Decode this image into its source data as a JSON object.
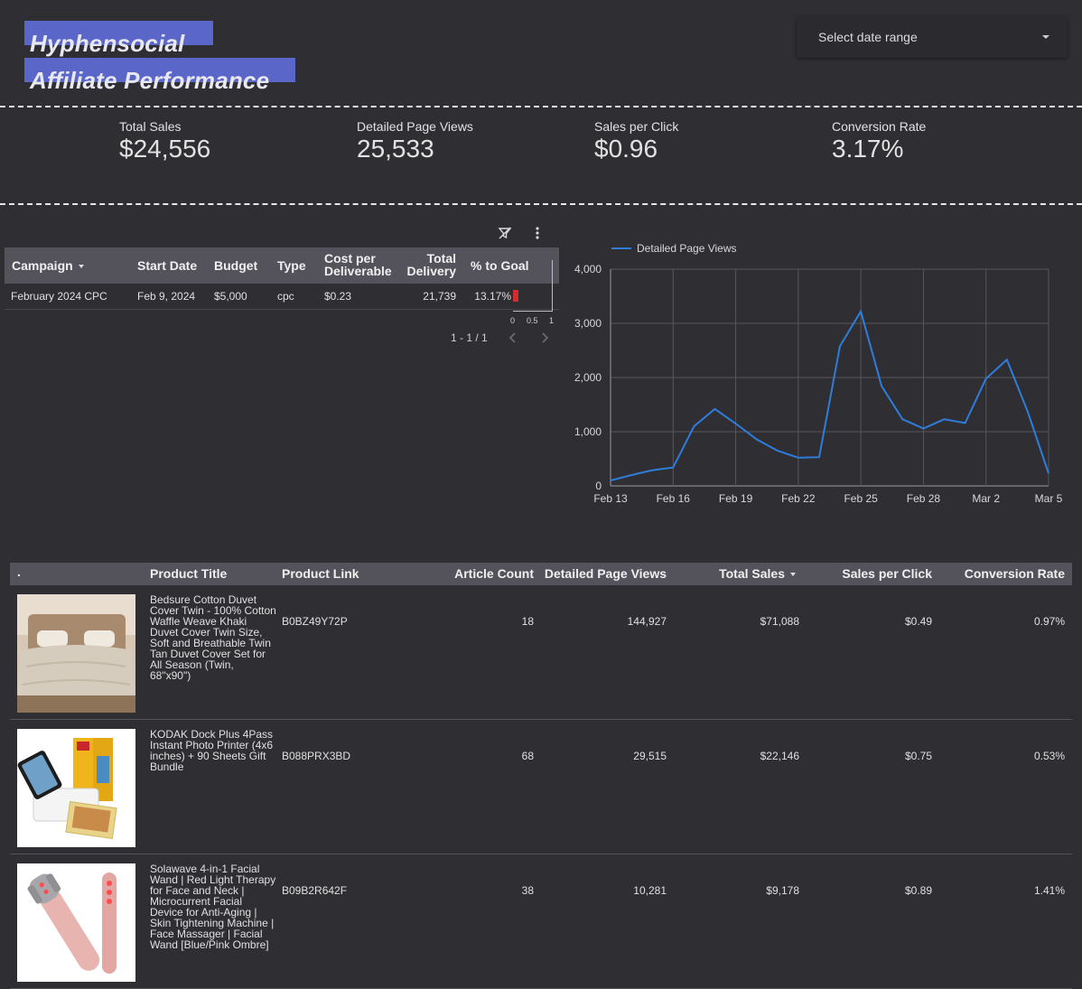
{
  "header": {
    "title_line1": "Hyphensocial",
    "title_line2": "Affiliate Performance",
    "date_range_placeholder": "Select date range"
  },
  "kpis": [
    {
      "label": "Total Sales",
      "value": "$24,556"
    },
    {
      "label": "Detailed Page Views",
      "value": "25,533"
    },
    {
      "label": "Sales per Click",
      "value": "$0.96"
    },
    {
      "label": "Conversion Rate",
      "value": "3.17%"
    }
  ],
  "campaign_table": {
    "columns": [
      "Campaign",
      "Start Date",
      "Budget",
      "Type",
      "Cost per Deliverable",
      "Total Delivery",
      "% to Goal"
    ],
    "col_cost_l1": "Cost per",
    "col_cost_l2": "Deliverable",
    "col_total_l1": "Total",
    "col_total_l2": "Delivery",
    "rows": [
      {
        "campaign": "February 2024 CPC",
        "start_date": "Feb 9, 2024",
        "budget": "$5,000",
        "type": "cpc",
        "cost": "$0.23",
        "delivery": "21,739",
        "pct": "13.17%",
        "pct_fraction": 0.1317
      }
    ],
    "goal_axis": [
      "0",
      "0.5",
      "1"
    ],
    "pager": "1 - 1 / 1"
  },
  "chart_data": {
    "type": "line",
    "legend": "Detailed Page Views",
    "legend_position": "top-left",
    "x": [
      "Feb 13",
      "Feb 14",
      "Feb 15",
      "Feb 16",
      "Feb 17",
      "Feb 18",
      "Feb 19",
      "Feb 20",
      "Feb 21",
      "Feb 22",
      "Feb 23",
      "Feb 24",
      "Feb 25",
      "Feb 26",
      "Feb 27",
      "Feb 28",
      "Feb 29",
      "Mar 1",
      "Mar 2",
      "Mar 3",
      "Mar 4",
      "Mar 5"
    ],
    "series": [
      {
        "name": "Detailed Page Views",
        "values": [
          100,
          200,
          290,
          340,
          1100,
          1420,
          1150,
          860,
          650,
          520,
          530,
          2580,
          3220,
          1840,
          1230,
          1060,
          1230,
          1160,
          1980,
          2330,
          1370,
          230
        ]
      }
    ],
    "x_ticks": [
      "Feb 13",
      "Feb 16",
      "Feb 19",
      "Feb 22",
      "Feb 25",
      "Feb 28",
      "Mar 2",
      "Mar 5"
    ],
    "y_ticks": [
      0,
      1000,
      2000,
      3000,
      4000
    ],
    "y_tick_labels": [
      "0",
      "1,000",
      "2,000",
      "3,000",
      "4,000"
    ],
    "ylim": [
      0,
      4000
    ],
    "grid": true,
    "color": "#2f7ddb"
  },
  "product_table": {
    "columns": [
      ".",
      "Product Title",
      "Product Link",
      "Article Count",
      "Detailed Page Views",
      "Total Sales",
      "Sales per Click",
      "Conversion Rate"
    ],
    "rows": [
      {
        "title": "Bedsure Cotton Duvet Cover Twin - 100% Cotton Waffle Weave Khaki Duvet Cover Twin Size, Soft and Breathable Twin Tan Duvet Cover Set for All Season (Twin, 68\"x90\")",
        "link": "B0BZ49Y72P",
        "articles": "18",
        "views": "144,927",
        "sales": "$71,088",
        "spc": "$0.49",
        "conv": "0.97%"
      },
      {
        "title": "KODAK Dock Plus 4Pass Instant Photo Printer (4x6 inches) + 90 Sheets Gift Bundle",
        "link": "B088PRX3BD",
        "articles": "68",
        "views": "29,515",
        "sales": "$22,146",
        "spc": "$0.75",
        "conv": "0.53%"
      },
      {
        "title": "Solawave 4-in-1 Facial Wand | Red Light Therapy for Face and Neck | Microcurrent Facial Device for Anti-Aging | Skin Tightening Machine | Face Massager | Facial Wand [Blue/Pink Ombre]",
        "link": "B09B2R642F",
        "articles": "38",
        "views": "10,281",
        "sales": "$9,178",
        "spc": "$0.89",
        "conv": "1.41%"
      }
    ]
  }
}
